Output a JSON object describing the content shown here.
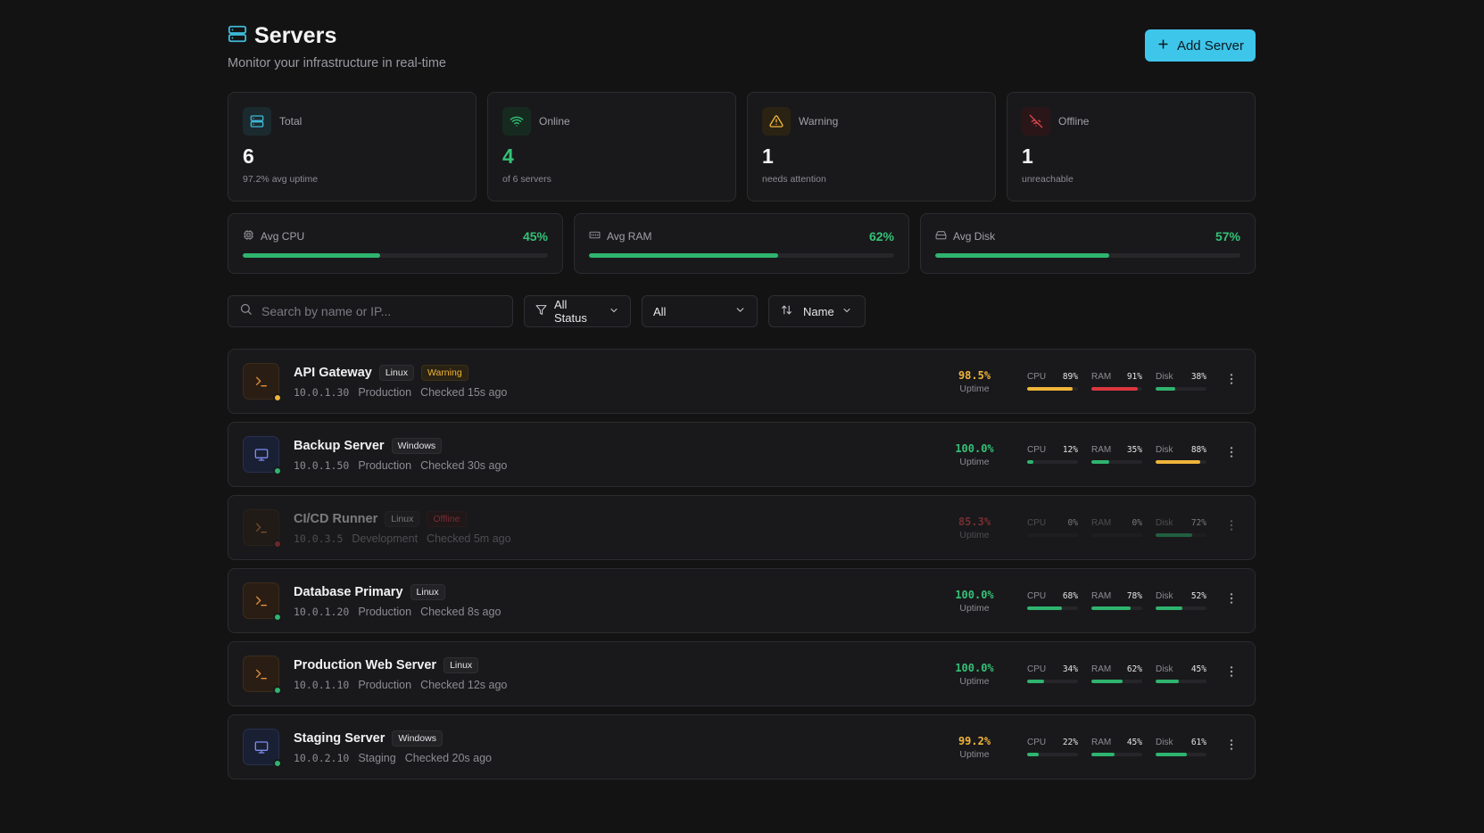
{
  "header": {
    "title": "Servers",
    "subtitle": "Monitor your infrastructure in real-time",
    "add_label": "Add Server"
  },
  "stats": [
    {
      "label": "Total",
      "value": "6",
      "sub": "97.2% avg uptime",
      "icon": "server-stack-icon",
      "color": "#3fb9d8"
    },
    {
      "label": "Online",
      "value": "4",
      "sub": "of 6 servers",
      "icon": "wifi-icon",
      "color": "#34c176"
    },
    {
      "label": "Warning",
      "value": "1",
      "sub": "needs attention",
      "icon": "warning-triangle-icon",
      "color": "#f0b53a"
    },
    {
      "label": "Offline",
      "value": "1",
      "sub": "unreachable",
      "icon": "wifi-off-icon",
      "color": "#e0484e"
    }
  ],
  "averages": [
    {
      "label": "Avg CPU",
      "value": "45%",
      "fraction": 0.45,
      "icon": "cpu-icon"
    },
    {
      "label": "Avg RAM",
      "value": "62%",
      "fraction": 0.62,
      "icon": "memory-icon"
    },
    {
      "label": "Avg Disk",
      "value": "57%",
      "fraction": 0.57,
      "icon": "disk-icon"
    }
  ],
  "filters": {
    "search_placeholder": "Search by name or IP...",
    "status": "All Status",
    "environment": "All",
    "sort": "Name"
  },
  "colors": {
    "green": "#2fb46f",
    "yellow": "#f0b53a",
    "red": "#d9363e",
    "accent": "#3ec5ea"
  },
  "servers": [
    {
      "name": "API Gateway",
      "os": "Linux",
      "status_badge": "Warning",
      "status": "warning",
      "ip": "10.0.1.30",
      "env": "Production",
      "checked": "Checked 15s ago",
      "uptime": "98.5%",
      "uptime_label": "Uptime",
      "resources": [
        {
          "label": "CPU",
          "value": "89%",
          "fraction": 0.89
        },
        {
          "label": "RAM",
          "value": "91%",
          "fraction": 0.91
        },
        {
          "label": "Disk",
          "value": "38%",
          "fraction": 0.38
        }
      ]
    },
    {
      "name": "Backup Server",
      "os": "Windows",
      "status_badge": "",
      "status": "online",
      "ip": "10.0.1.50",
      "env": "Production",
      "checked": "Checked 30s ago",
      "uptime": "100.0%",
      "uptime_label": "Uptime",
      "resources": [
        {
          "label": "CPU",
          "value": "12%",
          "fraction": 0.12
        },
        {
          "label": "RAM",
          "value": "35%",
          "fraction": 0.35
        },
        {
          "label": "Disk",
          "value": "88%",
          "fraction": 0.88
        }
      ]
    },
    {
      "name": "CI/CD Runner",
      "os": "Linux",
      "status_badge": "Offline",
      "status": "offline",
      "ip": "10.0.3.5",
      "env": "Development",
      "checked": "Checked 5m ago",
      "uptime": "85.3%",
      "uptime_label": "Uptime",
      "resources": [
        {
          "label": "CPU",
          "value": "0%",
          "fraction": 0.0
        },
        {
          "label": "RAM",
          "value": "0%",
          "fraction": 0.0
        },
        {
          "label": "Disk",
          "value": "72%",
          "fraction": 0.72
        }
      ]
    },
    {
      "name": "Database Primary",
      "os": "Linux",
      "status_badge": "",
      "status": "online",
      "ip": "10.0.1.20",
      "env": "Production",
      "checked": "Checked 8s ago",
      "uptime": "100.0%",
      "uptime_label": "Uptime",
      "resources": [
        {
          "label": "CPU",
          "value": "68%",
          "fraction": 0.68
        },
        {
          "label": "RAM",
          "value": "78%",
          "fraction": 0.78
        },
        {
          "label": "Disk",
          "value": "52%",
          "fraction": 0.52
        }
      ]
    },
    {
      "name": "Production Web Server",
      "os": "Linux",
      "status_badge": "",
      "status": "online",
      "ip": "10.0.1.10",
      "env": "Production",
      "checked": "Checked 12s ago",
      "uptime": "100.0%",
      "uptime_label": "Uptime",
      "resources": [
        {
          "label": "CPU",
          "value": "34%",
          "fraction": 0.34
        },
        {
          "label": "RAM",
          "value": "62%",
          "fraction": 0.62
        },
        {
          "label": "Disk",
          "value": "45%",
          "fraction": 0.45
        }
      ]
    },
    {
      "name": "Staging Server",
      "os": "Windows",
      "status_badge": "",
      "status": "online",
      "ip": "10.0.2.10",
      "env": "Staging",
      "checked": "Checked 20s ago",
      "uptime": "99.2%",
      "uptime_label": "Uptime",
      "resources": [
        {
          "label": "CPU",
          "value": "22%",
          "fraction": 0.22
        },
        {
          "label": "RAM",
          "value": "45%",
          "fraction": 0.45
        },
        {
          "label": "Disk",
          "value": "61%",
          "fraction": 0.61
        }
      ]
    }
  ]
}
